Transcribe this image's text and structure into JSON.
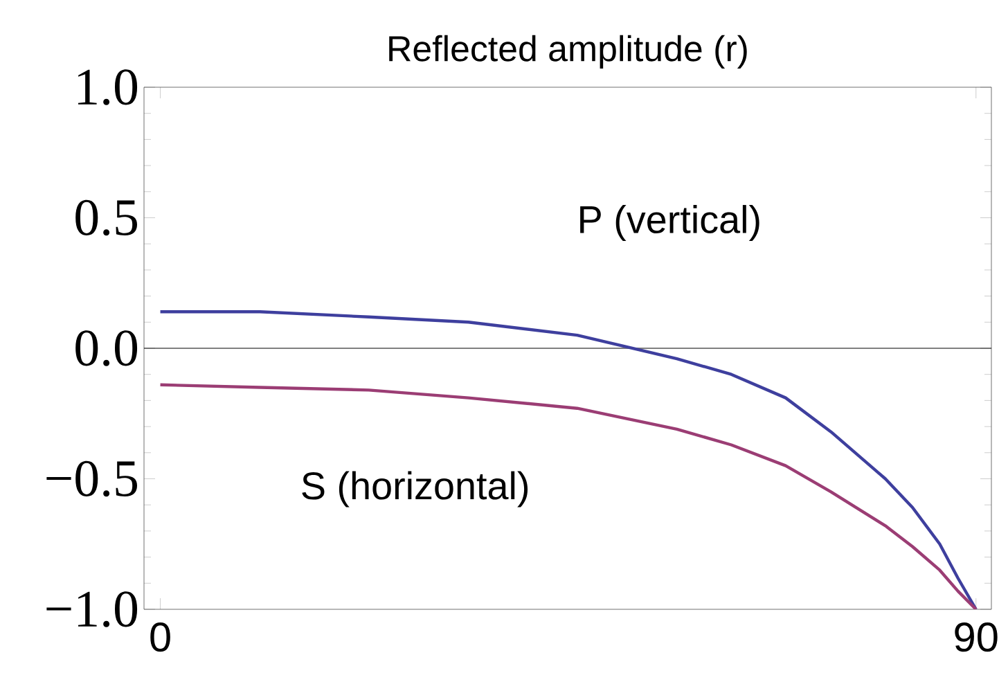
{
  "chart_data": {
    "type": "line",
    "title": "Reflected amplitude (r)",
    "x": [
      0,
      11,
      23,
      34,
      46,
      57,
      63,
      69,
      74,
      80,
      83,
      86,
      88,
      90
    ],
    "series": [
      {
        "name": "P (vertical)",
        "color": "#3e3f9e",
        "values": [
          0.14,
          0.14,
          0.12,
          0.1,
          0.05,
          -0.04,
          -0.1,
          -0.19,
          -0.32,
          -0.5,
          -0.61,
          -0.75,
          -0.88,
          -1.0
        ]
      },
      {
        "name": "S (horizontal)",
        "color": "#9b3d74",
        "values": [
          -0.14,
          -0.15,
          -0.16,
          -0.19,
          -0.23,
          -0.31,
          -0.37,
          -0.45,
          -0.55,
          -0.68,
          -0.76,
          -0.85,
          -0.93,
          -1.0
        ]
      }
    ],
    "xlim": [
      -1.8,
      91.7
    ],
    "ylim": [
      -1.0,
      1.0
    ],
    "xticks": [
      0,
      90
    ],
    "yticks": [
      {
        "value": 1.0,
        "label": "1.0"
      },
      {
        "value": 0.5,
        "label": "0.5"
      },
      {
        "value": 0.0,
        "label": "0.0"
      },
      {
        "value": -0.5,
        "label": "−0.5"
      },
      {
        "value": -1.0,
        "label": "−1.0"
      }
    ],
    "ref_lines": [
      {
        "axis": "y",
        "value": 0,
        "color": "#000000"
      }
    ]
  }
}
